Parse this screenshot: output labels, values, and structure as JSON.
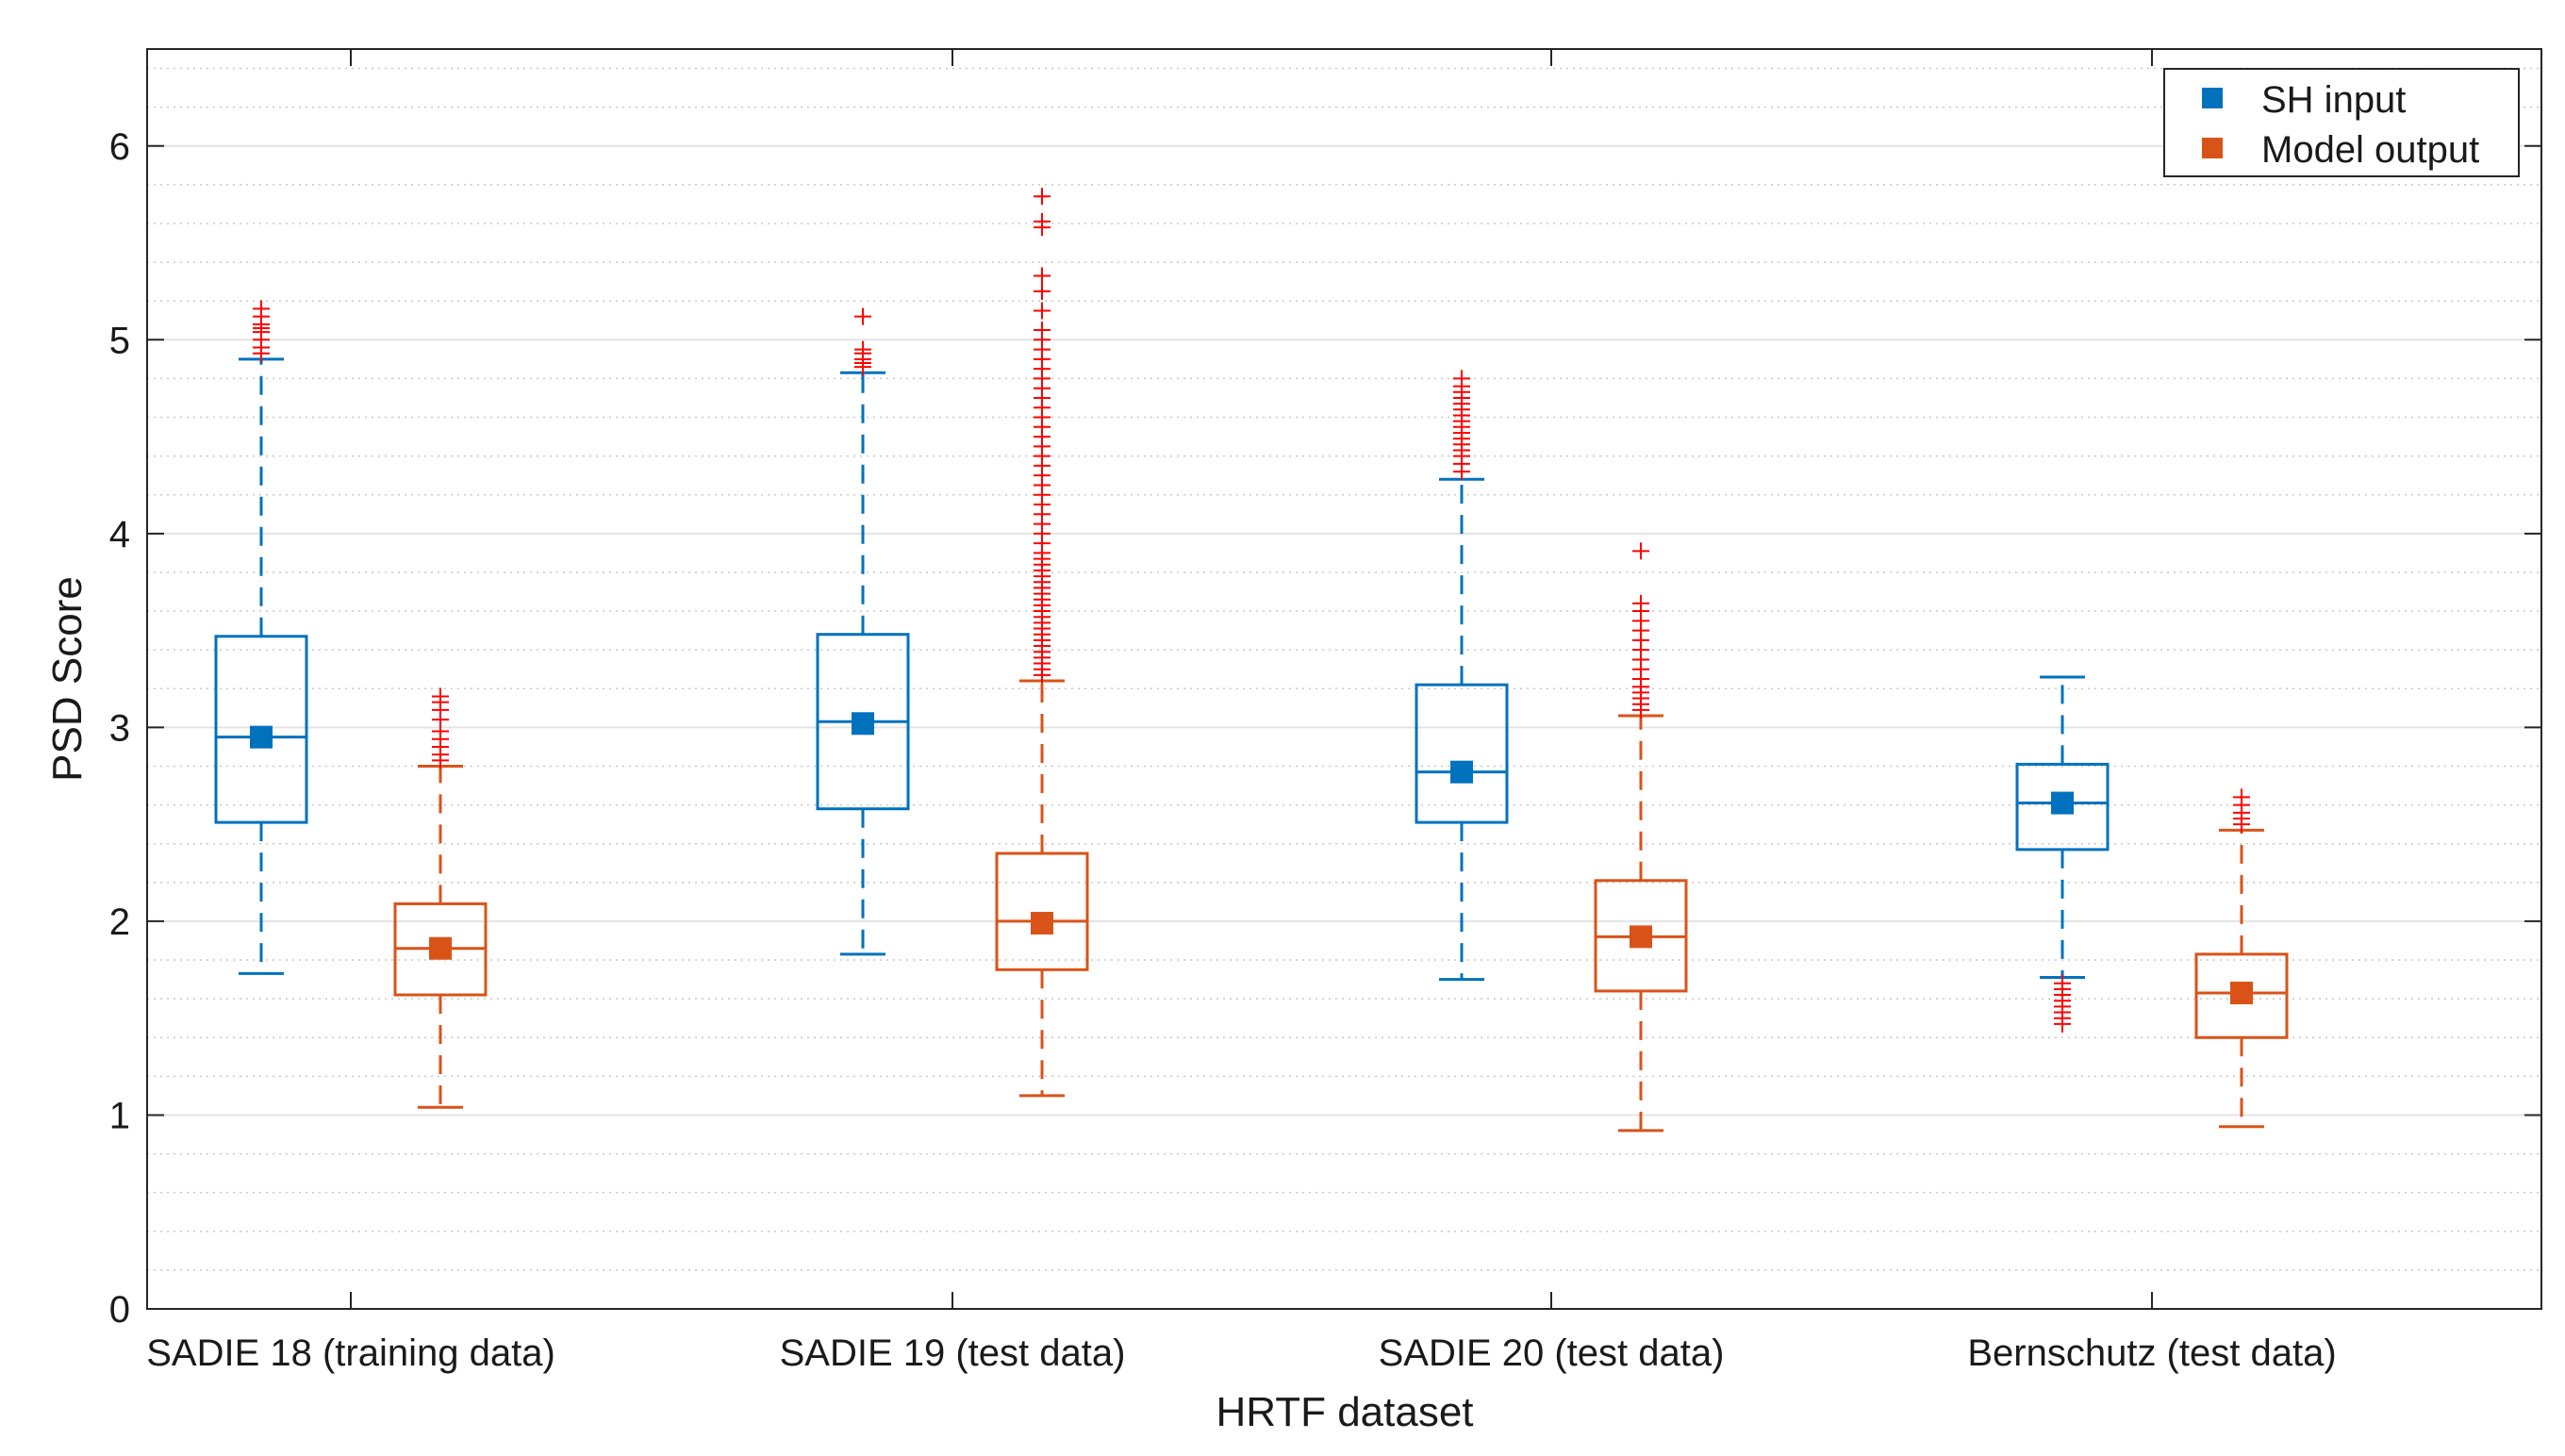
{
  "chart_data": {
    "type": "box",
    "title": "",
    "xlabel": "HRTF dataset",
    "ylabel": "PSD Score",
    "ylim": [
      0,
      6.5
    ],
    "yticks": [
      "0",
      "1",
      "2",
      "3",
      "4",
      "5",
      "6"
    ],
    "minor_grid_step": 0.2,
    "grid": true,
    "legend_position": "top-right",
    "categories": [
      "SADIE 18 (training data)",
      "SADIE 19 (test data)",
      "SADIE 20 (test data)",
      "Bernschutz (test data)"
    ],
    "series": [
      {
        "name": "SH input",
        "color": "#0072bd",
        "boxes": [
          {
            "whisker_low": 1.73,
            "q1": 2.51,
            "median": 2.95,
            "q3": 3.47,
            "whisker_high": 4.9,
            "mean": 2.95,
            "outliers": [
              4.93,
              4.96,
              5.0,
              5.04,
              5.06,
              5.08,
              5.12,
              5.16
            ]
          },
          {
            "whisker_low": 1.83,
            "q1": 2.58,
            "median": 3.03,
            "q3": 3.48,
            "whisker_high": 4.83,
            "mean": 3.02,
            "outliers": [
              4.86,
              4.88,
              4.9,
              4.93,
              4.95,
              5.12
            ]
          },
          {
            "whisker_low": 1.7,
            "q1": 2.51,
            "median": 2.77,
            "q3": 3.22,
            "whisker_high": 4.28,
            "mean": 2.77,
            "outliers": [
              4.32,
              4.36,
              4.4,
              4.43,
              4.46,
              4.49,
              4.52,
              4.55,
              4.58,
              4.61,
              4.64,
              4.67,
              4.7,
              4.73,
              4.76,
              4.8
            ]
          },
          {
            "whisker_low": 1.71,
            "q1": 2.37,
            "median": 2.61,
            "q3": 2.81,
            "whisker_high": 3.26,
            "mean": 2.61,
            "outliers": [
              1.47,
              1.5,
              1.53,
              1.56,
              1.59,
              1.62,
              1.65,
              1.68
            ]
          }
        ]
      },
      {
        "name": "Model output",
        "color": "#d95319",
        "boxes": [
          {
            "whisker_low": 1.04,
            "q1": 1.62,
            "median": 1.86,
            "q3": 2.09,
            "whisker_high": 2.8,
            "mean": 1.86,
            "outliers": [
              2.83,
              2.86,
              2.9,
              2.94,
              2.98,
              3.04,
              3.09,
              3.13,
              3.16
            ]
          },
          {
            "whisker_low": 1.1,
            "q1": 1.75,
            "median": 2.0,
            "q3": 2.35,
            "whisker_high": 3.24,
            "mean": 1.99,
            "outliers": [
              3.27,
              3.3,
              3.33,
              3.36,
              3.39,
              3.42,
              3.45,
              3.48,
              3.51,
              3.54,
              3.57,
              3.6,
              3.63,
              3.66,
              3.69,
              3.72,
              3.75,
              3.78,
              3.81,
              3.84,
              3.87,
              3.9,
              3.95,
              4.0,
              4.05,
              4.1,
              4.15,
              4.2,
              4.25,
              4.3,
              4.35,
              4.4,
              4.45,
              4.5,
              4.55,
              4.6,
              4.65,
              4.7,
              4.75,
              4.8,
              4.85,
              4.9,
              4.95,
              5.0,
              5.05,
              5.15,
              5.25,
              5.33,
              5.58,
              5.61,
              5.74
            ]
          },
          {
            "whisker_low": 0.92,
            "q1": 1.64,
            "median": 1.92,
            "q3": 2.21,
            "whisker_high": 3.06,
            "mean": 1.92,
            "outliers": [
              3.09,
              3.12,
              3.15,
              3.18,
              3.21,
              3.25,
              3.3,
              3.35,
              3.4,
              3.45,
              3.5,
              3.55,
              3.6,
              3.64,
              3.91
            ]
          },
          {
            "whisker_low": 0.94,
            "q1": 1.4,
            "median": 1.63,
            "q3": 1.83,
            "whisker_high": 2.47,
            "mean": 1.63,
            "outliers": [
              2.5,
              2.53,
              2.56,
              2.6,
              2.64
            ]
          }
        ]
      }
    ]
  }
}
